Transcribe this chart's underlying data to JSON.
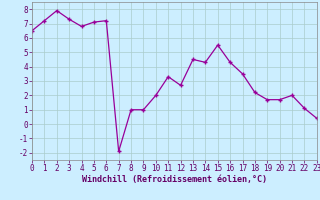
{
  "x": [
    0,
    1,
    2,
    3,
    4,
    5,
    6,
    7,
    8,
    9,
    10,
    11,
    12,
    13,
    14,
    15,
    16,
    17,
    18,
    19,
    20,
    21,
    22,
    23
  ],
  "y": [
    6.5,
    7.2,
    7.9,
    7.3,
    6.8,
    7.1,
    7.2,
    -1.9,
    1.0,
    1.0,
    2.0,
    3.3,
    2.7,
    4.5,
    4.3,
    5.5,
    4.3,
    3.5,
    2.2,
    1.7,
    1.7,
    2.0,
    1.1,
    0.4
  ],
  "line_color": "#990099",
  "marker": "+",
  "marker_color": "#990099",
  "bg_color": "#cceeff",
  "grid_color": "#aacccc",
  "xlabel": "Windchill (Refroidissement éolien,°C)",
  "xlim": [
    0,
    23
  ],
  "ylim": [
    -2.5,
    8.5
  ],
  "yticks": [
    -2,
    -1,
    0,
    1,
    2,
    3,
    4,
    5,
    6,
    7,
    8
  ],
  "xticks": [
    0,
    1,
    2,
    3,
    4,
    5,
    6,
    7,
    8,
    9,
    10,
    11,
    12,
    13,
    14,
    15,
    16,
    17,
    18,
    19,
    20,
    21,
    22,
    23
  ],
  "font_color": "#660066",
  "tick_fontsize": 5.5,
  "xlabel_fontsize": 6.0
}
